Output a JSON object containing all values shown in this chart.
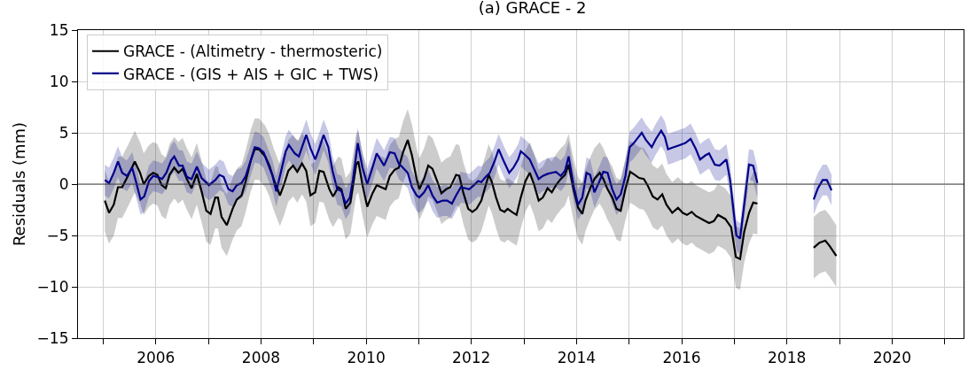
{
  "chart_data": {
    "type": "line",
    "title": "(a) GRACE - 2",
    "ylabel": "Residuals (mm)",
    "xlim": [
      2004.52,
      2021.36
    ],
    "xticks": [
      {
        "value": 2005,
        "label": null
      },
      2006,
      {
        "value": 2007,
        "label": null
      },
      2008,
      {
        "value": 2009,
        "label": null
      },
      2010,
      {
        "value": 2011,
        "label": null
      },
      2012,
      {
        "value": 2013,
        "label": null
      },
      2014,
      {
        "value": 2015,
        "label": null
      },
      2016,
      {
        "value": 2017,
        "label": null
      },
      2018,
      {
        "value": 2019,
        "label": null
      },
      2020,
      {
        "value": 2021,
        "label": null
      }
    ],
    "ylim": [
      -15,
      15
    ],
    "yticks": [
      {
        "value": -15,
        "label": "−15"
      },
      {
        "value": -10,
        "label": "−10"
      },
      {
        "value": -5,
        "label": "−5"
      },
      0,
      5,
      10,
      15
    ],
    "grid": true,
    "legend": "top left",
    "ref_lines": [
      {
        "axis": "y",
        "value": 0,
        "color": "#444444"
      }
    ],
    "series": [
      {
        "name": "GRACE - (Altimetry - thermosteric)",
        "color": "#000000",
        "x": [
          2005.03,
          2005.11,
          2005.2,
          2005.28,
          2005.36,
          2005.48,
          2005.6,
          2005.7,
          2005.77,
          2005.87,
          2005.95,
          2006.03,
          2006.11,
          2006.19,
          2006.26,
          2006.35,
          2006.43,
          2006.51,
          2006.59,
          2006.68,
          2006.78,
          2006.87,
          2006.96,
          2007.04,
          2007.13,
          2007.18,
          2007.25,
          2007.35,
          2007.46,
          2007.54,
          2007.63,
          2007.71,
          2007.8,
          2007.88,
          2007.96,
          2008.08,
          2008.16,
          2008.24,
          2008.36,
          2008.44,
          2008.52,
          2008.61,
          2008.69,
          2008.78,
          2008.86,
          2008.94,
          2009.03,
          2009.11,
          2009.19,
          2009.3,
          2009.37,
          2009.47,
          2009.53,
          2009.61,
          2009.7,
          2009.81,
          2009.85,
          2009.93,
          2010.02,
          2010.12,
          2010.2,
          2010.37,
          2010.45,
          2010.54,
          2010.62,
          2010.7,
          2010.79,
          2010.87,
          2010.96,
          2011.01,
          2011.1,
          2011.18,
          2011.26,
          2011.35,
          2011.43,
          2011.52,
          2011.6,
          2011.71,
          2011.77,
          2011.85,
          2011.94,
          2012.02,
          2012.1,
          2012.19,
          2012.24,
          2012.33,
          2012.39,
          2012.47,
          2012.55,
          2012.63,
          2012.69,
          2012.77,
          2012.86,
          2012.94,
          2013.03,
          2013.11,
          2013.19,
          2013.28,
          2013.36,
          2013.45,
          2013.53,
          2013.61,
          2013.7,
          2013.78,
          2013.85,
          2013.95,
          2014.03,
          2014.11,
          2014.17,
          2014.26,
          2014.34,
          2014.44,
          2014.51,
          2014.59,
          2014.68,
          2014.76,
          2014.84,
          2014.93,
          2015.02,
          2015.11,
          2015.19,
          2015.28,
          2015.35,
          2015.45,
          2015.54,
          2015.63,
          2015.71,
          2015.82,
          2015.93,
          2016.02,
          2016.1,
          2016.19,
          2016.27,
          2016.38,
          2016.52,
          2016.61,
          2016.69,
          2016.83,
          2016.94,
          2017.03,
          2017.11,
          2017.19,
          2017.28,
          2017.36,
          2017.44,
          2017.9,
          2018.51,
          2018.62,
          2018.73,
          2018.81,
          2018.94
        ],
        "values": [
          -1.6,
          -2.8,
          -2.0,
          -0.3,
          -0.3,
          0.9,
          2.2,
          1.1,
          0.0,
          0.8,
          1.1,
          0.9,
          -0.1,
          -0.4,
          0.9,
          1.6,
          1.1,
          1.5,
          0.5,
          -0.4,
          1.0,
          -0.7,
          -2.6,
          -2.9,
          -1.3,
          -1.3,
          -3.2,
          -4.0,
          -2.4,
          -1.5,
          -1.1,
          0.3,
          2.2,
          3.4,
          3.4,
          2.7,
          1.8,
          0.5,
          -1.1,
          0.0,
          1.3,
          1.8,
          1.2,
          2.0,
          1.3,
          -1.1,
          -0.8,
          1.3,
          1.2,
          -0.5,
          -1.2,
          -0.3,
          -0.5,
          -2.4,
          -1.8,
          1.9,
          2.2,
          -0.1,
          -2.2,
          -0.9,
          -0.1,
          -0.5,
          0.8,
          1.4,
          1.6,
          3.1,
          4.3,
          2.8,
          0.5,
          -0.5,
          0.5,
          1.8,
          1.5,
          0.3,
          -0.9,
          -0.5,
          -0.3,
          0.9,
          0.8,
          -0.9,
          -2.4,
          -2.7,
          -2.4,
          -1.6,
          -0.7,
          0.9,
          0.2,
          -1.3,
          -2.5,
          -2.7,
          -2.4,
          -2.7,
          -3.0,
          -1.3,
          0.3,
          1.1,
          0.0,
          -1.6,
          -1.3,
          -0.4,
          -0.8,
          -0.1,
          0.5,
          0.9,
          1.9,
          -0.7,
          -2.3,
          -2.9,
          -1.6,
          -0.4,
          0.5,
          1.1,
          0.5,
          -0.5,
          -1.3,
          -2.4,
          -2.6,
          -0.5,
          1.2,
          0.9,
          0.6,
          0.5,
          -0.1,
          -1.2,
          -1.5,
          -1.0,
          -2.0,
          -2.8,
          -2.3,
          -2.8,
          -3.0,
          -2.7,
          -3.1,
          -3.4,
          -3.8,
          -3.6,
          -3.0,
          -3.4,
          -4.2,
          -7.1,
          -7.3,
          -4.6,
          -2.8,
          -1.8,
          -1.9,
          null,
          -6.2,
          -5.7,
          -5.5,
          -6.0,
          -7.0
        ],
        "lower": [
          -4.6,
          -5.8,
          -5.0,
          -3.3,
          -3.3,
          -2.1,
          -0.8,
          -1.9,
          -3.0,
          -2.2,
          -1.9,
          -2.1,
          -3.1,
          -3.4,
          -2.1,
          -1.4,
          -1.9,
          -1.5,
          -2.5,
          -3.4,
          -2.0,
          -3.7,
          -5.6,
          -5.9,
          -4.3,
          -4.3,
          -6.2,
          -7.0,
          -5.4,
          -4.5,
          -4.1,
          -2.7,
          -0.8,
          0.4,
          0.4,
          -0.3,
          -1.2,
          -2.5,
          -4.1,
          -3.0,
          -1.7,
          -1.2,
          -1.8,
          -1.0,
          -1.7,
          -4.1,
          -3.8,
          -1.7,
          -1.8,
          -3.5,
          -4.2,
          -3.3,
          -3.5,
          -5.4,
          -4.8,
          -1.1,
          -0.8,
          -3.1,
          -5.2,
          -3.9,
          -3.1,
          -3.5,
          -2.2,
          -1.6,
          -1.4,
          0.1,
          1.3,
          -0.2,
          -2.5,
          -3.5,
          -2.5,
          -1.2,
          -1.5,
          -2.7,
          -3.9,
          -3.5,
          -3.3,
          -2.1,
          -2.2,
          -3.9,
          -5.4,
          -5.7,
          -5.4,
          -4.6,
          -3.7,
          -2.1,
          -2.8,
          -4.3,
          -5.5,
          -5.7,
          -5.4,
          -5.7,
          -6.0,
          -4.3,
          -2.7,
          -1.9,
          -3.0,
          -4.6,
          -4.3,
          -3.4,
          -3.8,
          -3.1,
          -2.5,
          -2.1,
          -1.1,
          -3.7,
          -5.3,
          -5.9,
          -4.6,
          -3.4,
          -2.5,
          -1.9,
          -2.5,
          -3.5,
          -4.3,
          -5.4,
          -5.6,
          -3.5,
          -1.8,
          -2.1,
          -2.4,
          -2.5,
          -3.1,
          -4.2,
          -4.5,
          -4.0,
          -5.0,
          -5.8,
          -5.3,
          -5.8,
          -6.0,
          -5.7,
          -6.1,
          -6.4,
          -6.8,
          -6.6,
          -6.0,
          -6.4,
          -7.2,
          -10.1,
          -10.3,
          -7.6,
          -5.8,
          -4.8,
          -4.9,
          null,
          -9.2,
          -8.7,
          -8.5,
          -9.0,
          -10.0
        ],
        "upper": [
          1.4,
          0.2,
          1.0,
          2.7,
          2.7,
          3.9,
          5.2,
          4.1,
          3.0,
          3.8,
          4.1,
          3.9,
          2.9,
          2.6,
          3.9,
          4.6,
          4.1,
          4.5,
          3.5,
          2.6,
          4.0,
          2.3,
          0.4,
          0.1,
          1.7,
          1.7,
          -0.2,
          -1.0,
          0.6,
          1.5,
          1.9,
          3.3,
          5.2,
          6.4,
          6.4,
          5.7,
          4.8,
          3.5,
          1.9,
          3.0,
          4.3,
          4.8,
          4.2,
          5.0,
          4.3,
          1.9,
          2.2,
          4.3,
          4.2,
          2.5,
          1.8,
          2.7,
          2.5,
          0.6,
          1.2,
          4.9,
          5.2,
          2.9,
          0.8,
          2.1,
          2.9,
          2.5,
          3.8,
          4.4,
          4.6,
          6.1,
          7.3,
          5.8,
          3.5,
          2.5,
          3.5,
          4.8,
          4.5,
          3.3,
          2.1,
          2.5,
          2.7,
          3.9,
          3.8,
          2.1,
          0.6,
          0.3,
          0.6,
          1.4,
          2.3,
          3.9,
          3.2,
          1.7,
          0.5,
          0.3,
          0.6,
          0.3,
          0.0,
          1.7,
          3.3,
          4.1,
          3.0,
          1.4,
          1.7,
          2.6,
          2.2,
          2.9,
          3.5,
          3.9,
          4.9,
          2.3,
          0.7,
          0.1,
          1.4,
          2.6,
          3.5,
          4.1,
          3.5,
          2.5,
          1.7,
          0.6,
          0.4,
          2.5,
          4.2,
          3.9,
          3.6,
          3.5,
          2.9,
          1.8,
          1.5,
          2.0,
          1.0,
          0.2,
          0.7,
          0.2,
          0.0,
          0.3,
          -0.1,
          -0.4,
          -0.8,
          -0.6,
          0.0,
          -0.4,
          -1.2,
          -4.1,
          -4.3,
          -1.6,
          0.2,
          1.2,
          1.1,
          null,
          -3.2,
          -2.7,
          -2.5,
          -3.0,
          -4.0
        ]
      },
      {
        "name": "GRACE - (GIS + AIS + GIC + TWS)",
        "color": "#00008b",
        "x": [
          2005.03,
          2005.11,
          2005.2,
          2005.28,
          2005.36,
          2005.45,
          2005.55,
          2005.63,
          2005.71,
          2005.78,
          2005.87,
          2005.95,
          2006.03,
          2006.12,
          2006.2,
          2006.29,
          2006.35,
          2006.44,
          2006.51,
          2006.59,
          2006.68,
          2006.78,
          2006.87,
          2007.01,
          2007.13,
          2007.21,
          2007.29,
          2007.38,
          2007.46,
          2007.54,
          2007.63,
          2007.71,
          2007.81,
          2007.88,
          2007.96,
          2008.05,
          2008.13,
          2008.22,
          2008.29,
          2008.38,
          2008.47,
          2008.53,
          2008.64,
          2008.72,
          2008.86,
          2008.94,
          2009.03,
          2009.11,
          2009.19,
          2009.28,
          2009.36,
          2009.45,
          2009.53,
          2009.61,
          2009.69,
          2009.75,
          2009.84,
          2009.93,
          2010.02,
          2010.12,
          2010.2,
          2010.34,
          2010.45,
          2010.54,
          2010.62,
          2010.7,
          2010.79,
          2010.87,
          2010.96,
          2011.01,
          2011.1,
          2011.18,
          2011.26,
          2011.35,
          2011.46,
          2011.54,
          2011.63,
          2011.71,
          2011.8,
          2011.88,
          2011.96,
          2012.05,
          2012.13,
          2012.19,
          2012.27,
          2012.35,
          2012.44,
          2012.52,
          2012.61,
          2012.72,
          2012.8,
          2012.89,
          2012.94,
          2013.03,
          2013.11,
          2013.19,
          2013.28,
          2013.36,
          2013.45,
          2013.53,
          2013.61,
          2013.7,
          2013.78,
          2013.85,
          2013.95,
          2014.03,
          2014.11,
          2014.19,
          2014.26,
          2014.34,
          2014.43,
          2014.51,
          2014.59,
          2014.68,
          2014.76,
          2014.84,
          2014.93,
          2015.01,
          2015.09,
          2015.18,
          2015.24,
          2015.32,
          2015.43,
          2015.51,
          2015.61,
          2015.68,
          2015.74,
          2015.85,
          2015.96,
          2016.07,
          2016.17,
          2016.27,
          2016.35,
          2016.45,
          2016.52,
          2016.63,
          2016.72,
          2016.85,
          2016.92,
          2017.04,
          2017.11,
          2017.19,
          2017.28,
          2017.36,
          2017.44,
          2017.9,
          2018.51,
          2018.59,
          2018.68,
          2018.76,
          2018.85
        ],
        "values": [
          0.4,
          0.1,
          1.1,
          2.2,
          1.1,
          0.8,
          1.6,
          0.1,
          -1.5,
          -1.2,
          0.3,
          0.8,
          0.7,
          0.5,
          1.1,
          2.3,
          2.7,
          1.8,
          1.8,
          0.7,
          0.5,
          1.7,
          0.6,
          -0.1,
          0.4,
          0.9,
          0.7,
          -0.5,
          -0.7,
          -0.1,
          0.1,
          0.8,
          2.4,
          3.6,
          3.5,
          3.1,
          2.0,
          0.8,
          -0.7,
          1.2,
          3.2,
          3.8,
          3.0,
          2.7,
          4.8,
          3.5,
          2.4,
          3.5,
          4.8,
          3.6,
          1.3,
          -0.5,
          -0.7,
          -1.9,
          -1.3,
          0.5,
          4.0,
          1.6,
          0.0,
          1.6,
          3.0,
          1.8,
          3.1,
          3.0,
          2.0,
          1.6,
          1.1,
          -0.3,
          -1.1,
          -1.3,
          -0.8,
          -0.1,
          -1.1,
          -1.8,
          -1.6,
          -1.6,
          -1.9,
          -1.1,
          -0.3,
          -0.4,
          -0.5,
          -0.1,
          0.3,
          0.2,
          0.7,
          1.1,
          2.2,
          3.4,
          2.3,
          1.1,
          1.6,
          2.4,
          3.2,
          2.8,
          2.4,
          1.5,
          0.5,
          0.8,
          1.0,
          1.1,
          1.2,
          0.8,
          1.3,
          2.7,
          -0.3,
          -2.0,
          -1.3,
          1.1,
          0.9,
          -0.8,
          0.2,
          1.2,
          1.1,
          -0.5,
          -1.5,
          -1.0,
          0.8,
          3.6,
          4.0,
          4.6,
          5.0,
          4.3,
          3.6,
          4.4,
          5.2,
          4.6,
          3.4,
          3.6,
          3.8,
          4.0,
          4.4,
          3.4,
          2.4,
          2.8,
          3.0,
          1.9,
          1.8,
          2.4,
          0.4,
          -5.0,
          -5.3,
          -1.9,
          1.9,
          1.8,
          0.1,
          null,
          -1.5,
          -0.4,
          0.4,
          0.4,
          -0.6
        ],
        "lower": [
          -1.1,
          -1.4,
          -0.4,
          0.7,
          -0.4,
          -0.7,
          0.1,
          -1.4,
          -3.0,
          -2.7,
          -1.2,
          -0.7,
          -0.8,
          -1.0,
          -0.4,
          0.8,
          1.2,
          0.3,
          0.3,
          -0.8,
          -1.0,
          0.2,
          -0.9,
          -1.6,
          -1.1,
          -0.6,
          -0.8,
          -2.0,
          -2.2,
          -1.6,
          -1.4,
          -0.7,
          0.9,
          2.1,
          2.0,
          1.6,
          0.5,
          -0.7,
          -2.2,
          -0.3,
          1.7,
          2.3,
          1.5,
          1.2,
          3.3,
          2.0,
          0.9,
          2.0,
          3.3,
          2.1,
          -0.2,
          -2.0,
          -2.2,
          -3.4,
          -2.8,
          -1.0,
          2.5,
          0.1,
          -1.5,
          0.1,
          1.5,
          0.3,
          1.6,
          1.5,
          0.5,
          0.1,
          -0.4,
          -1.8,
          -2.6,
          -2.8,
          -2.3,
          -1.6,
          -2.6,
          -3.3,
          -3.1,
          -3.1,
          -3.4,
          -2.6,
          -1.8,
          -1.9,
          -2.0,
          -1.6,
          -1.2,
          -1.3,
          -0.8,
          -0.4,
          0.7,
          1.9,
          0.8,
          -0.4,
          0.1,
          0.9,
          1.7,
          1.3,
          0.9,
          0.0,
          -1.0,
          -0.7,
          -0.5,
          -0.4,
          -0.3,
          -0.7,
          -0.2,
          1.2,
          -1.8,
          -3.5,
          -2.8,
          -0.4,
          -0.6,
          -2.3,
          -1.3,
          -0.3,
          -0.4,
          -2.0,
          -3.0,
          -2.5,
          -0.7,
          2.1,
          2.5,
          3.1,
          3.5,
          2.8,
          2.1,
          2.9,
          3.7,
          3.1,
          1.9,
          2.1,
          2.3,
          2.5,
          2.9,
          1.9,
          0.9,
          1.3,
          1.5,
          0.4,
          0.3,
          0.9,
          -1.1,
          -6.5,
          -6.8,
          -3.4,
          0.4,
          0.3,
          -1.4,
          null,
          -3.0,
          -1.9,
          -1.1,
          -1.1,
          -2.1
        ],
        "upper": [
          1.9,
          1.6,
          2.6,
          3.7,
          2.6,
          2.3,
          3.1,
          1.6,
          0.0,
          0.3,
          1.8,
          2.3,
          2.2,
          2.0,
          2.6,
          3.8,
          4.2,
          3.3,
          3.3,
          2.2,
          2.0,
          3.2,
          2.1,
          1.4,
          1.9,
          2.4,
          2.2,
          1.0,
          0.8,
          1.4,
          1.6,
          2.3,
          3.9,
          5.1,
          5.0,
          4.6,
          3.5,
          2.3,
          0.8,
          2.7,
          4.7,
          5.3,
          4.5,
          4.2,
          6.3,
          5.0,
          3.9,
          5.0,
          6.3,
          5.1,
          2.8,
          1.0,
          0.8,
          -0.4,
          0.2,
          2.0,
          5.5,
          3.1,
          1.5,
          3.1,
          4.5,
          3.3,
          4.6,
          4.5,
          3.5,
          3.1,
          2.6,
          1.2,
          0.4,
          0.2,
          0.7,
          1.4,
          0.4,
          -0.3,
          -0.1,
          -0.1,
          -0.4,
          0.4,
          1.2,
          1.1,
          1.0,
          1.4,
          1.8,
          1.7,
          2.2,
          2.6,
          3.7,
          4.9,
          3.8,
          2.6,
          3.1,
          3.9,
          4.7,
          4.3,
          3.9,
          3.0,
          2.0,
          2.3,
          2.5,
          2.6,
          2.7,
          2.3,
          2.8,
          4.2,
          1.2,
          -0.5,
          0.2,
          2.6,
          2.4,
          0.7,
          1.7,
          2.7,
          2.6,
          1.0,
          0.0,
          0.5,
          2.3,
          5.1,
          5.5,
          6.1,
          6.5,
          5.8,
          5.1,
          5.9,
          6.7,
          6.1,
          4.9,
          5.1,
          5.3,
          5.5,
          5.9,
          4.9,
          3.9,
          4.3,
          4.5,
          3.4,
          3.3,
          3.9,
          1.9,
          -3.5,
          -3.8,
          -0.4,
          3.4,
          3.3,
          1.6,
          null,
          0.0,
          1.1,
          1.9,
          1.9,
          0.9
        ]
      }
    ]
  }
}
